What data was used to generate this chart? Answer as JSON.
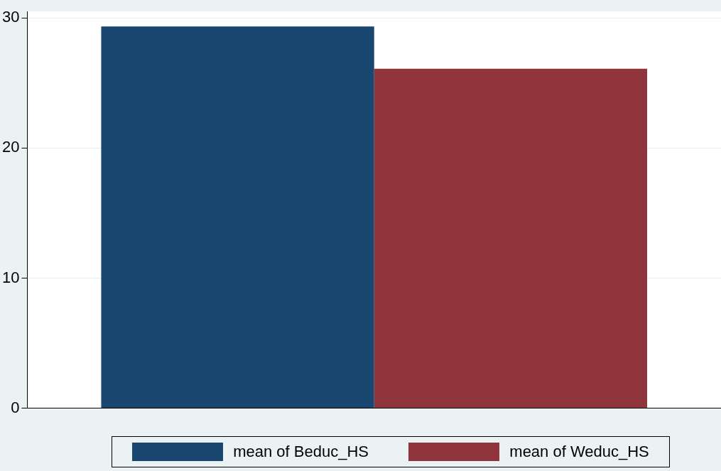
{
  "chart_data": {
    "type": "bar",
    "categories": [
      null
    ],
    "series": [
      {
        "name": "mean of Beduc_HS",
        "color": "#1a476f",
        "values": [
          29.35
        ]
      },
      {
        "name": "mean of Weduc_HS",
        "color": "#90353b",
        "values": [
          26.1
        ]
      }
    ],
    "ylim": [
      0,
      30.5
    ],
    "yticks": [
      0,
      10,
      20,
      30
    ],
    "grid": "y",
    "legend": "bottom"
  }
}
